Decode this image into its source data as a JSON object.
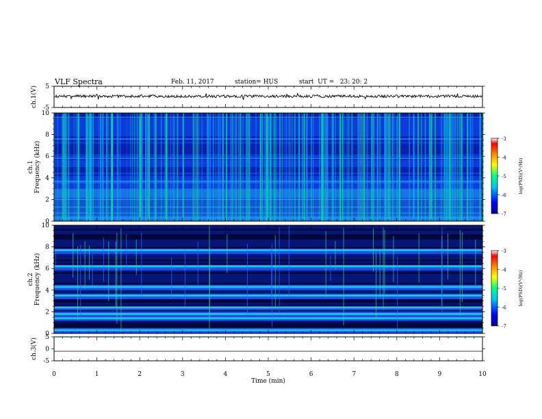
{
  "header": {
    "title": "VLF Spectra",
    "date": "Feb. 11, 2017",
    "station": "station= HUS",
    "start": "start  UT =   23: 20: 2"
  },
  "chart_data": [
    {
      "type": "line",
      "panel": "ch1-waveform",
      "ylabel": "ch.1(V)",
      "yticks": [
        "5",
        "-5"
      ],
      "ylim": [
        -5,
        5
      ],
      "xlim": [
        0,
        10
      ],
      "trace_level": 0.3
    },
    {
      "type": "heatmap",
      "panel": "ch1-spectrogram",
      "ylabel": "ch.1\nFrequency (kHz)",
      "yticks": [
        "0",
        "2",
        "4",
        "6",
        "8",
        "10"
      ],
      "ylim": [
        0,
        10
      ],
      "xlim": [
        0,
        10
      ],
      "colorbar": {
        "label": "log(PSD)(V²/Hz)",
        "ticks": [
          "-3",
          "-4",
          "-5",
          "-6",
          "-7"
        ],
        "range": [
          -7,
          -3
        ],
        "colors": [
          "#00008b",
          "#0000ff",
          "#00c0ff",
          "#00ff80",
          "#ffff00",
          "#ff8000",
          "#ff0000",
          "#ffffff"
        ]
      }
    },
    {
      "type": "heatmap",
      "panel": "ch2-spectrogram",
      "ylabel": "ch.2\nFrequency (kHz)",
      "yticks": [
        "0",
        "2",
        "4",
        "6",
        "8",
        "10"
      ],
      "ylim": [
        0,
        10
      ],
      "xlim": [
        0,
        10
      ],
      "bands_khz": [
        0.3,
        1.4,
        1.8,
        2.4,
        3.5,
        4.3,
        6.2,
        7.7
      ],
      "colorbar": {
        "label": "log(PSD)(V²/Hz)",
        "ticks": [
          "-3",
          "-4",
          "-5",
          "-6",
          "-7"
        ],
        "range": [
          -7,
          -3
        ],
        "colors": [
          "#00008b",
          "#0000ff",
          "#00c0ff",
          "#00ff80",
          "#ffff00",
          "#ff8000",
          "#ff0000",
          "#ffffff"
        ]
      }
    },
    {
      "type": "line",
      "panel": "ch3-waveform",
      "ylabel": "ch.3(V)",
      "yticks": [
        "5",
        "0",
        "-5"
      ],
      "ylim": [
        -5,
        5
      ],
      "xlim": [
        0,
        10
      ],
      "trace_level": -1.0
    }
  ],
  "xaxis": {
    "label": "Time  (min)",
    "ticks": [
      "0",
      "1",
      "2",
      "3",
      "4",
      "5",
      "6",
      "7",
      "8",
      "9",
      "10"
    ]
  }
}
